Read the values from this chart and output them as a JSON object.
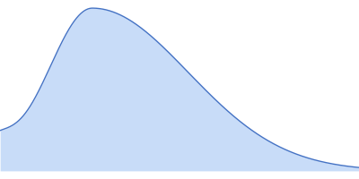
{
  "fill_color": "#c8dcf8",
  "line_color": "#4472c4",
  "line_width": 1.0,
  "background_color": "#ffffff",
  "figsize": [
    4.0,
    2.0
  ],
  "dpi": 100,
  "xlim": [
    -0.05,
    1.0
  ],
  "ylim": [
    -0.05,
    1.05
  ]
}
